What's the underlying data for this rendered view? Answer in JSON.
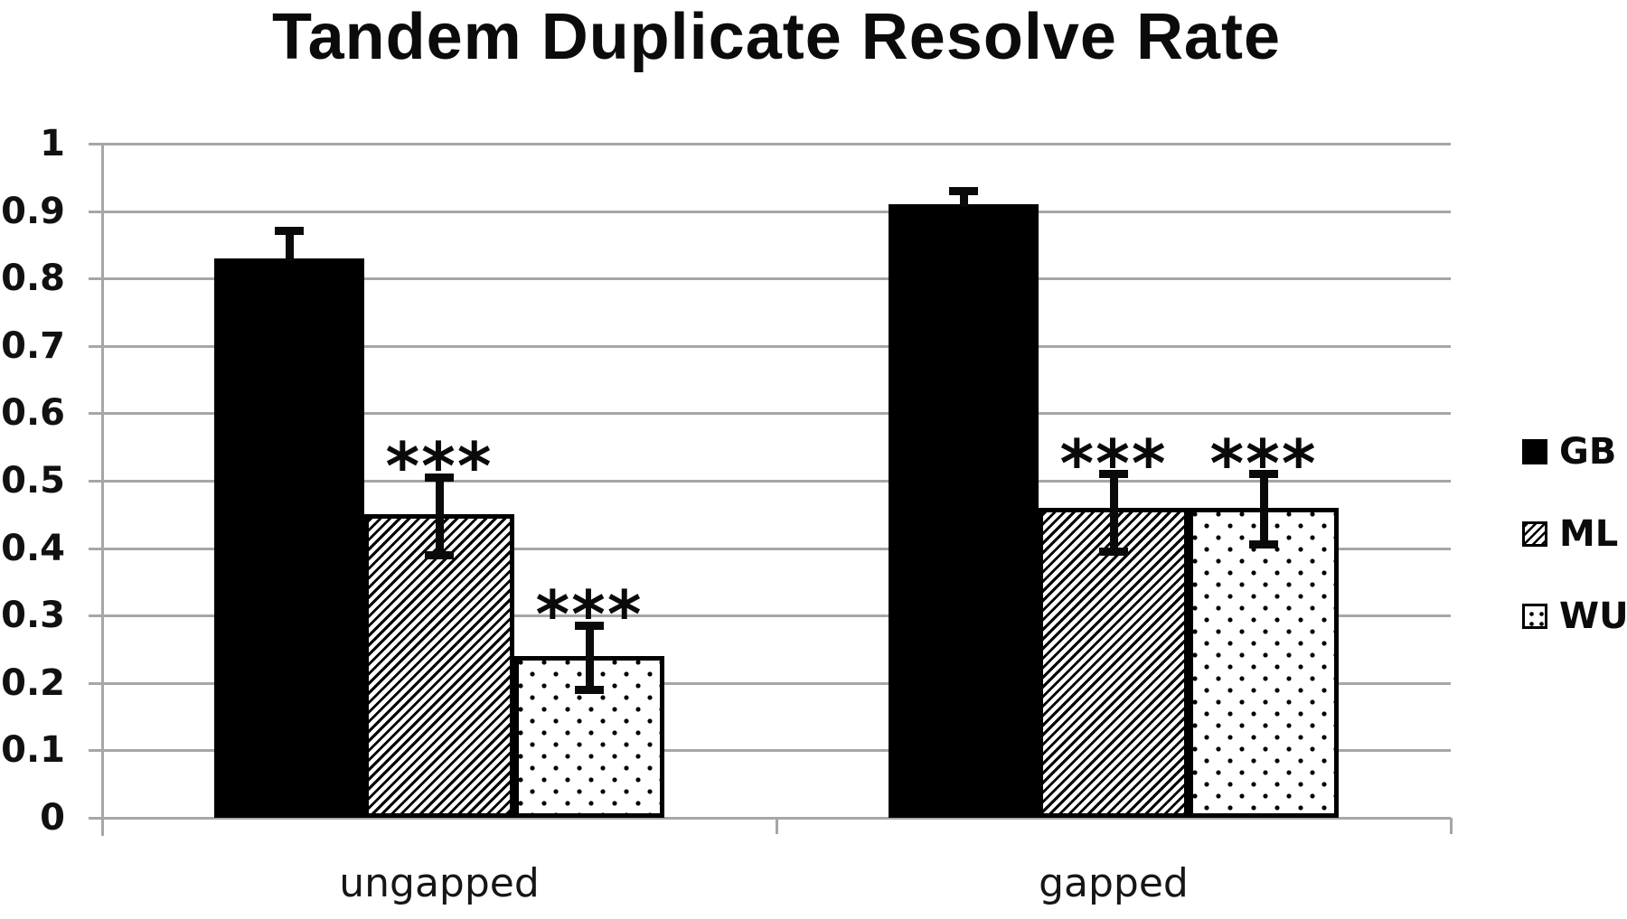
{
  "title": "Tandem Duplicate Resolve Rate",
  "chart_data": {
    "type": "bar",
    "title": "Tandem Duplicate Resolve Rate",
    "categories": [
      "ungapped",
      "gapped"
    ],
    "series": [
      {
        "name": "GB",
        "pattern": "solid-black",
        "values": [
          0.83,
          0.91
        ],
        "err_up": [
          0.04,
          0.02
        ],
        "err_down": [
          null,
          null
        ],
        "sig": [
          null,
          null
        ]
      },
      {
        "name": "ML",
        "pattern": "diagonal-hatch",
        "values": [
          0.45,
          0.46
        ],
        "err_up": [
          0.055,
          0.05
        ],
        "err_down": [
          0.06,
          0.065
        ],
        "sig": [
          "***",
          "***"
        ]
      },
      {
        "name": "WU",
        "pattern": "dots",
        "values": [
          0.24,
          0.46
        ],
        "err_up": [
          0.045,
          0.05
        ],
        "err_down": [
          0.05,
          0.055
        ],
        "sig": [
          "***",
          "***"
        ]
      }
    ],
    "ylim": [
      0,
      1
    ],
    "yticks": [
      0,
      0.1,
      0.2,
      0.3,
      0.4,
      0.5,
      0.6,
      0.7,
      0.8,
      0.9,
      1
    ],
    "ytick_labels": [
      "0",
      "0.1",
      "0.2",
      "0.3",
      "0.4",
      "0.5",
      "0.6",
      "0.7",
      "0.8",
      "0.9",
      "1"
    ],
    "grid": true,
    "legend_position": "right-middle",
    "colors": {
      "bars": "#000000",
      "gridline": "#a6a6a6",
      "axis": "#a6a6a6",
      "text": "#0b0b0b",
      "background": "#ffffff"
    }
  }
}
